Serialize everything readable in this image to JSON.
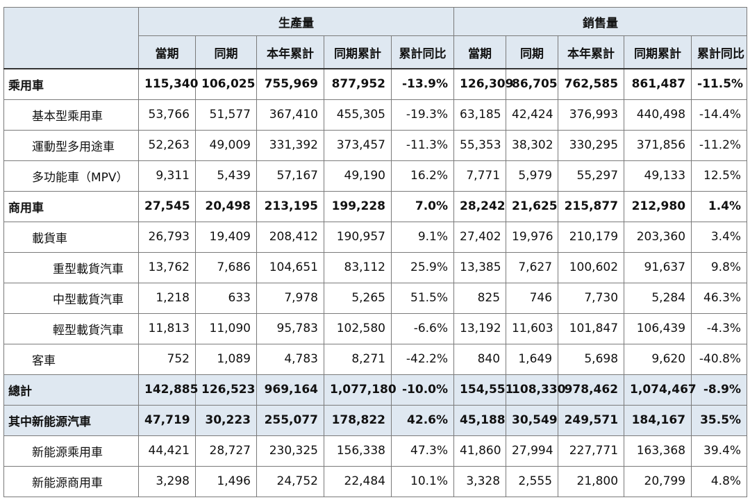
{
  "table": {
    "group_headers": [
      "生產量",
      "銷售量"
    ],
    "sub_headers": [
      "當期",
      "同期",
      "本年累計",
      "同期累計",
      "累計同比"
    ],
    "rows": [
      {
        "label": "乘用車",
        "values": [
          "115,340",
          "106,025",
          "755,969",
          "877,952",
          "-13.9%",
          "126,309",
          "86,705",
          "762,585",
          "861,487",
          "-11.5%"
        ]
      },
      {
        "label": "基本型乘用車",
        "values": [
          "53,766",
          "51,577",
          "367,410",
          "455,305",
          "-19.3%",
          "63,185",
          "42,424",
          "376,993",
          "440,498",
          "-14.4%"
        ]
      },
      {
        "label": "運動型多用途車",
        "values": [
          "52,263",
          "49,009",
          "331,392",
          "373,457",
          "-11.3%",
          "55,353",
          "38,302",
          "330,295",
          "371,856",
          "-11.2%"
        ]
      },
      {
        "label": "多功能車（MPV）",
        "values": [
          "9,311",
          "5,439",
          "57,167",
          "49,190",
          "16.2%",
          "7,771",
          "5,979",
          "55,297",
          "49,133",
          "12.5%"
        ]
      },
      {
        "label": "商用車",
        "values": [
          "27,545",
          "20,498",
          "213,195",
          "199,228",
          "7.0%",
          "28,242",
          "21,625",
          "215,877",
          "212,980",
          "1.4%"
        ]
      },
      {
        "label": "載貨車",
        "values": [
          "26,793",
          "19,409",
          "208,412",
          "190,957",
          "9.1%",
          "27,402",
          "19,976",
          "210,179",
          "203,360",
          "3.4%"
        ]
      },
      {
        "label": "重型載貨汽車",
        "values": [
          "13,762",
          "7,686",
          "104,651",
          "83,112",
          "25.9%",
          "13,385",
          "7,627",
          "100,602",
          "91,637",
          "9.8%"
        ]
      },
      {
        "label": "中型載貨汽車",
        "values": [
          "1,218",
          "633",
          "7,978",
          "5,265",
          "51.5%",
          "825",
          "746",
          "7,730",
          "5,284",
          "46.3%"
        ]
      },
      {
        "label": "輕型載貨汽車",
        "values": [
          "11,813",
          "11,090",
          "95,783",
          "102,580",
          "-6.6%",
          "13,192",
          "11,603",
          "101,847",
          "106,439",
          "-4.3%"
        ]
      },
      {
        "label": "客車",
        "values": [
          "752",
          "1,089",
          "4,783",
          "8,271",
          "-42.2%",
          "840",
          "1,649",
          "5,698",
          "9,620",
          "-40.8%"
        ]
      },
      {
        "label": "總計",
        "values": [
          "142,885",
          "126,523",
          "969,164",
          "1,077,180",
          "-10.0%",
          "154,551",
          "108,330",
          "978,462",
          "1,074,467",
          "-8.9%"
        ]
      },
      {
        "label": "其中新能源汽車",
        "values": [
          "47,719",
          "30,223",
          "255,077",
          "178,822",
          "42.6%",
          "45,188",
          "30,549",
          "249,571",
          "184,167",
          "35.5%"
        ]
      },
      {
        "label": "新能源乘用車",
        "values": [
          "44,421",
          "28,727",
          "230,325",
          "156,338",
          "47.3%",
          "41,860",
          "27,994",
          "227,771",
          "163,368",
          "39.4%"
        ]
      },
      {
        "label": "新能源商用車",
        "values": [
          "3,298",
          "1,496",
          "24,752",
          "22,484",
          "10.1%",
          "3,328",
          "2,555",
          "21,800",
          "20,799",
          "4.8%"
        ]
      }
    ]
  }
}
